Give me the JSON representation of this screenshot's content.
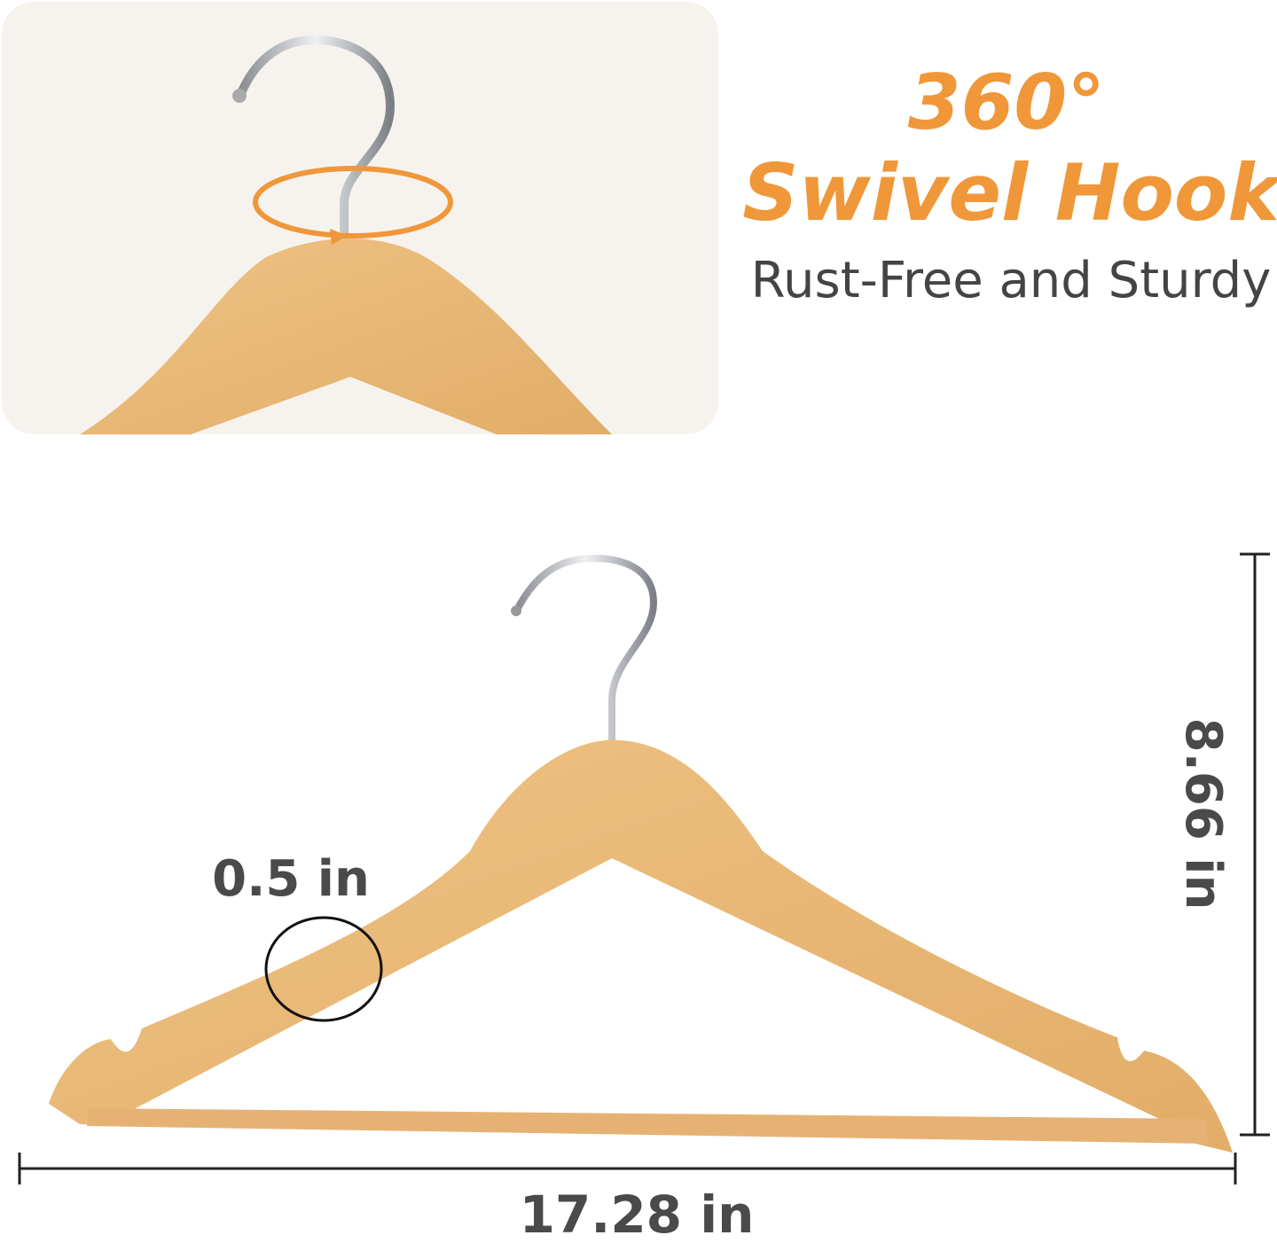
{
  "header": {
    "number": "360°",
    "title": "Swivel Hook",
    "subtitle": "Rust-Free and Sturdy"
  },
  "dimensions": {
    "thickness": "0.5 in",
    "height": "8.66 in",
    "width": "17.28 in"
  }
}
